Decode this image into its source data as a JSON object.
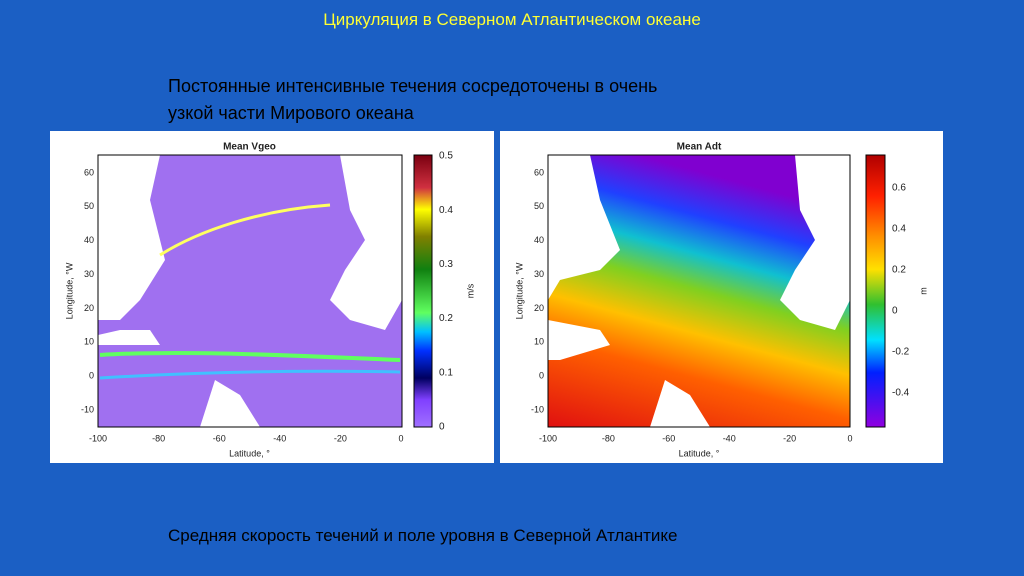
{
  "slide": {
    "title": "Циркуляция в Северном Атлантическом океане",
    "subtitle_lines": [
      "Постоянные интенсивные течения сосредоточены в очень",
      "узкой части Мирового океана"
    ],
    "caption": "Средняя скорость течений и поле уровня в Северной Атлантике"
  },
  "figures": [
    {
      "title": "Mean Vgeo",
      "x_label": "Latitude, °",
      "y_label": "Longitude, °W",
      "x_ticks": [
        "-100",
        "-80",
        "-60",
        "-40",
        "-20",
        "0"
      ],
      "y_ticks": [
        "60",
        "50",
        "40",
        "30",
        "20",
        "10",
        "0",
        "-10"
      ],
      "colorbar_ticks": [
        "0.5",
        "0.4",
        "0.3",
        "0.2",
        "0.1",
        "0"
      ],
      "colorbar_unit": "m/s"
    },
    {
      "title": "Mean Adt",
      "x_label": "Latitude, °",
      "y_label": "Longitude, °W",
      "x_ticks": [
        "-100",
        "-80",
        "-60",
        "-40",
        "-20",
        "0"
      ],
      "y_ticks": [
        "60",
        "50",
        "40",
        "30",
        "20",
        "10",
        "0",
        "-10"
      ],
      "colorbar_ticks": [
        "0.6",
        "0.4",
        "0.2",
        "0",
        "-0.2",
        "-0.4"
      ],
      "colorbar_unit": "m"
    }
  ]
}
